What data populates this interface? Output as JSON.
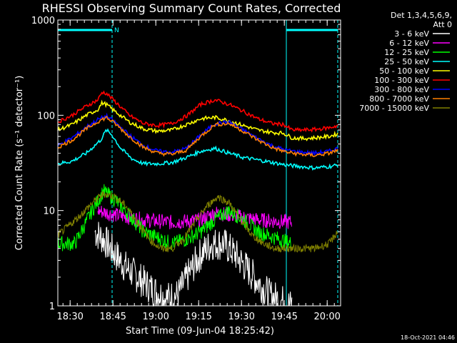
{
  "chart_data": {
    "type": "line",
    "title": "RHESSI Observing Summary Count Rates, Corrected",
    "xlabel": "Start Time (09-Jun-04 18:25:42)",
    "ylabel": "Corrected Count Rate (s⁻¹ detector⁻¹)",
    "yscale": "log",
    "ylim": [
      1,
      1000
    ],
    "xlim_minutes": [
      0,
      99
    ],
    "x_ticks": [
      {
        "label": "18:30",
        "minutes": 4.3
      },
      {
        "label": "18:45",
        "minutes": 19.3
      },
      {
        "label": "19:00",
        "minutes": 34.3
      },
      {
        "label": "19:15",
        "minutes": 49.3
      },
      {
        "label": "19:30",
        "minutes": 64.3
      },
      {
        "label": "19:45",
        "minutes": 79.3
      },
      {
        "label": "20:00",
        "minutes": 94.3
      }
    ],
    "y_ticks": [
      {
        "label": "1",
        "value": 1
      },
      {
        "label": "10",
        "value": 10
      },
      {
        "label": "100",
        "value": 100
      },
      {
        "label": "1000",
        "value": 1000
      }
    ],
    "legend_header": [
      "Det 1,3,4,5,6,9,",
      "Att 0"
    ],
    "timestamp": "18-Oct-2021 04:46",
    "night_marker_label": "N",
    "night_intervals_minutes": [
      [
        0,
        19.0
      ],
      [
        80.0,
        98.0
      ]
    ],
    "series": [
      {
        "name": "3 - 6 keV",
        "color": "#ffffff",
        "x": [
          13,
          16,
          20,
          24,
          28,
          33,
          38,
          42,
          46,
          50,
          54,
          58,
          62,
          66,
          70,
          74,
          82
        ],
        "y": [
          6,
          5,
          3.5,
          2.5,
          2,
          1.5,
          1.2,
          1.3,
          2.2,
          3.5,
          4.5,
          4.5,
          3.5,
          2.5,
          1.8,
          1.3,
          1
        ]
      },
      {
        "name": "6 - 12 keV",
        "color": "#ff00ff",
        "x": [
          14,
          20,
          30,
          40,
          50,
          55,
          60,
          70,
          82
        ],
        "y": [
          10,
          9,
          8,
          7.5,
          8,
          9.5,
          9,
          8,
          7.5
        ]
      },
      {
        "name": "12 - 25 keV",
        "color": "#00ff00",
        "x": [
          0,
          6,
          12,
          16,
          20,
          25,
          30,
          40,
          45,
          50,
          55,
          60,
          65,
          70,
          82
        ],
        "y": [
          4.5,
          4.5,
          10,
          16,
          13,
          9,
          6,
          4.5,
          5,
          6,
          8,
          10,
          8,
          6,
          4.5
        ]
      },
      {
        "name": "25 - 50 keV",
        "color": "#00ffff",
        "x": [
          0,
          5,
          10,
          15,
          17,
          19,
          22,
          26,
          30,
          35,
          40,
          45,
          50,
          55,
          60,
          65,
          70,
          75,
          80,
          85,
          90,
          95,
          98
        ],
        "y": [
          31,
          33,
          40,
          55,
          70,
          62,
          45,
          35,
          31,
          31,
          32,
          36,
          42,
          45,
          40,
          36,
          34,
          32,
          30,
          29,
          28,
          29,
          30
        ]
      },
      {
        "name": "50 - 100 keV",
        "color": "#ffff00",
        "x": [
          0,
          5,
          10,
          14,
          15.5,
          17,
          20,
          25,
          30,
          35,
          40,
          45,
          50,
          55,
          60,
          65,
          70,
          75,
          79,
          82,
          86,
          90,
          95,
          98
        ],
        "y": [
          70,
          80,
          100,
          115,
          135,
          130,
          110,
          85,
          72,
          68,
          70,
          80,
          92,
          95,
          88,
          78,
          70,
          66,
          65,
          58,
          57,
          58,
          60,
          64
        ]
      },
      {
        "name": "100 - 300 keV",
        "color": "#ff0000",
        "x": [
          0,
          5,
          10,
          14,
          15.5,
          17,
          20,
          25,
          30,
          35,
          40,
          45,
          50,
          55,
          60,
          65,
          70,
          75,
          79,
          82,
          86,
          90,
          95,
          98
        ],
        "y": [
          85,
          100,
          125,
          145,
          175,
          170,
          140,
          100,
          82,
          78,
          82,
          98,
          130,
          145,
          130,
          110,
          92,
          82,
          80,
          70,
          70,
          71,
          74,
          78
        ]
      },
      {
        "name": "300 - 800 keV",
        "color": "#0000ff",
        "x": [
          0,
          5,
          10,
          14,
          17,
          20,
          25,
          30,
          35,
          40,
          45,
          50,
          55,
          60,
          65,
          70,
          75,
          80,
          85,
          90,
          95,
          98
        ],
        "y": [
          48,
          58,
          75,
          90,
          98,
          85,
          62,
          48,
          42,
          41,
          45,
          62,
          82,
          85,
          70,
          57,
          48,
          43,
          41,
          40,
          42,
          45
        ]
      },
      {
        "name": "800 - 7000 keV",
        "color": "#ff8000",
        "x": [
          0,
          5,
          10,
          14,
          17,
          20,
          25,
          30,
          35,
          40,
          45,
          50,
          55,
          60,
          65,
          70,
          75,
          80,
          85,
          90,
          95,
          98
        ],
        "y": [
          46,
          55,
          72,
          86,
          95,
          82,
          60,
          46,
          40,
          39,
          43,
          60,
          80,
          82,
          68,
          55,
          46,
          41,
          39,
          38,
          40,
          43
        ]
      },
      {
        "name": "7000 - 15000 keV",
        "color": "#808000",
        "x": [
          0,
          4,
          8,
          12,
          16,
          20,
          24,
          28,
          32,
          36,
          40,
          44,
          48,
          52,
          56,
          60,
          64,
          68,
          72,
          76,
          80,
          85,
          90,
          95,
          98
        ],
        "y": [
          5.5,
          7,
          9,
          12,
          15,
          14,
          11,
          7.5,
          5,
          4,
          4,
          5,
          7.5,
          11,
          14,
          12,
          8,
          5.5,
          4.5,
          4,
          4,
          4,
          4,
          4.5,
          6
        ]
      }
    ]
  }
}
